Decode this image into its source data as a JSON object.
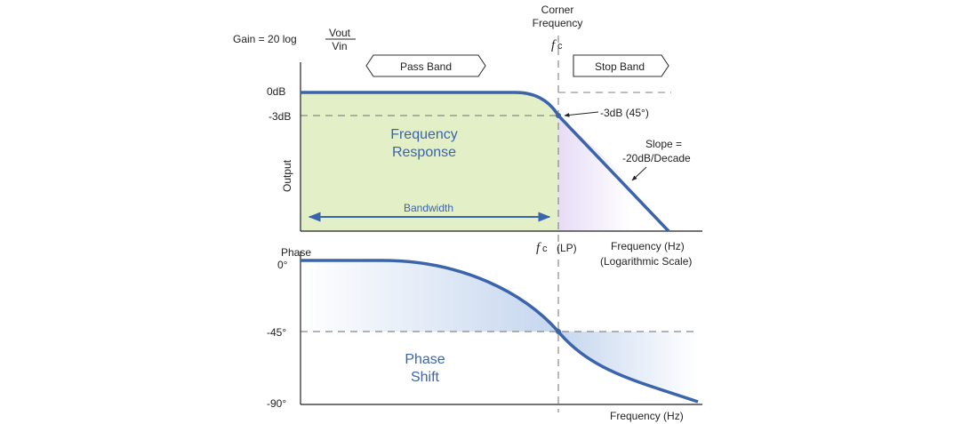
{
  "gain_formula": {
    "prefix": "Gain = 20 log",
    "numerator": "Vout",
    "denominator": "Vin"
  },
  "corner": {
    "line1": "Corner",
    "line2": "Frequency",
    "symbol": "f",
    "subscript": "c",
    "lp_suffix": "(LP)"
  },
  "bands": {
    "pass": "Pass Band",
    "stop": "Stop Band"
  },
  "magnitude": {
    "y_axis_label": "Output",
    "ticks": [
      "0dB",
      "-3dB"
    ],
    "region_line1": "Frequency",
    "region_line2": "Response",
    "bandwidth": "Bandwidth",
    "point_label": "-3dB (45°)",
    "slope_line1": "Slope =",
    "slope_line2": "-20dB/Decade",
    "x_label_line1": "Frequency (Hz)",
    "x_label_line2": "(Logarithmic Scale)"
  },
  "phase": {
    "title": "Phase",
    "ticks": [
      "0°",
      "-45°",
      "-90°"
    ],
    "region_line1": "Phase",
    "region_line2": "Shift",
    "x_label": "Frequency (Hz)"
  },
  "colors": {
    "curve": "#3b64ad",
    "passband_fill": "#e3efc6",
    "stopband_fill": "#ece6f8",
    "phase_fill": "#c9d8ef",
    "dashed": "#888888"
  }
}
